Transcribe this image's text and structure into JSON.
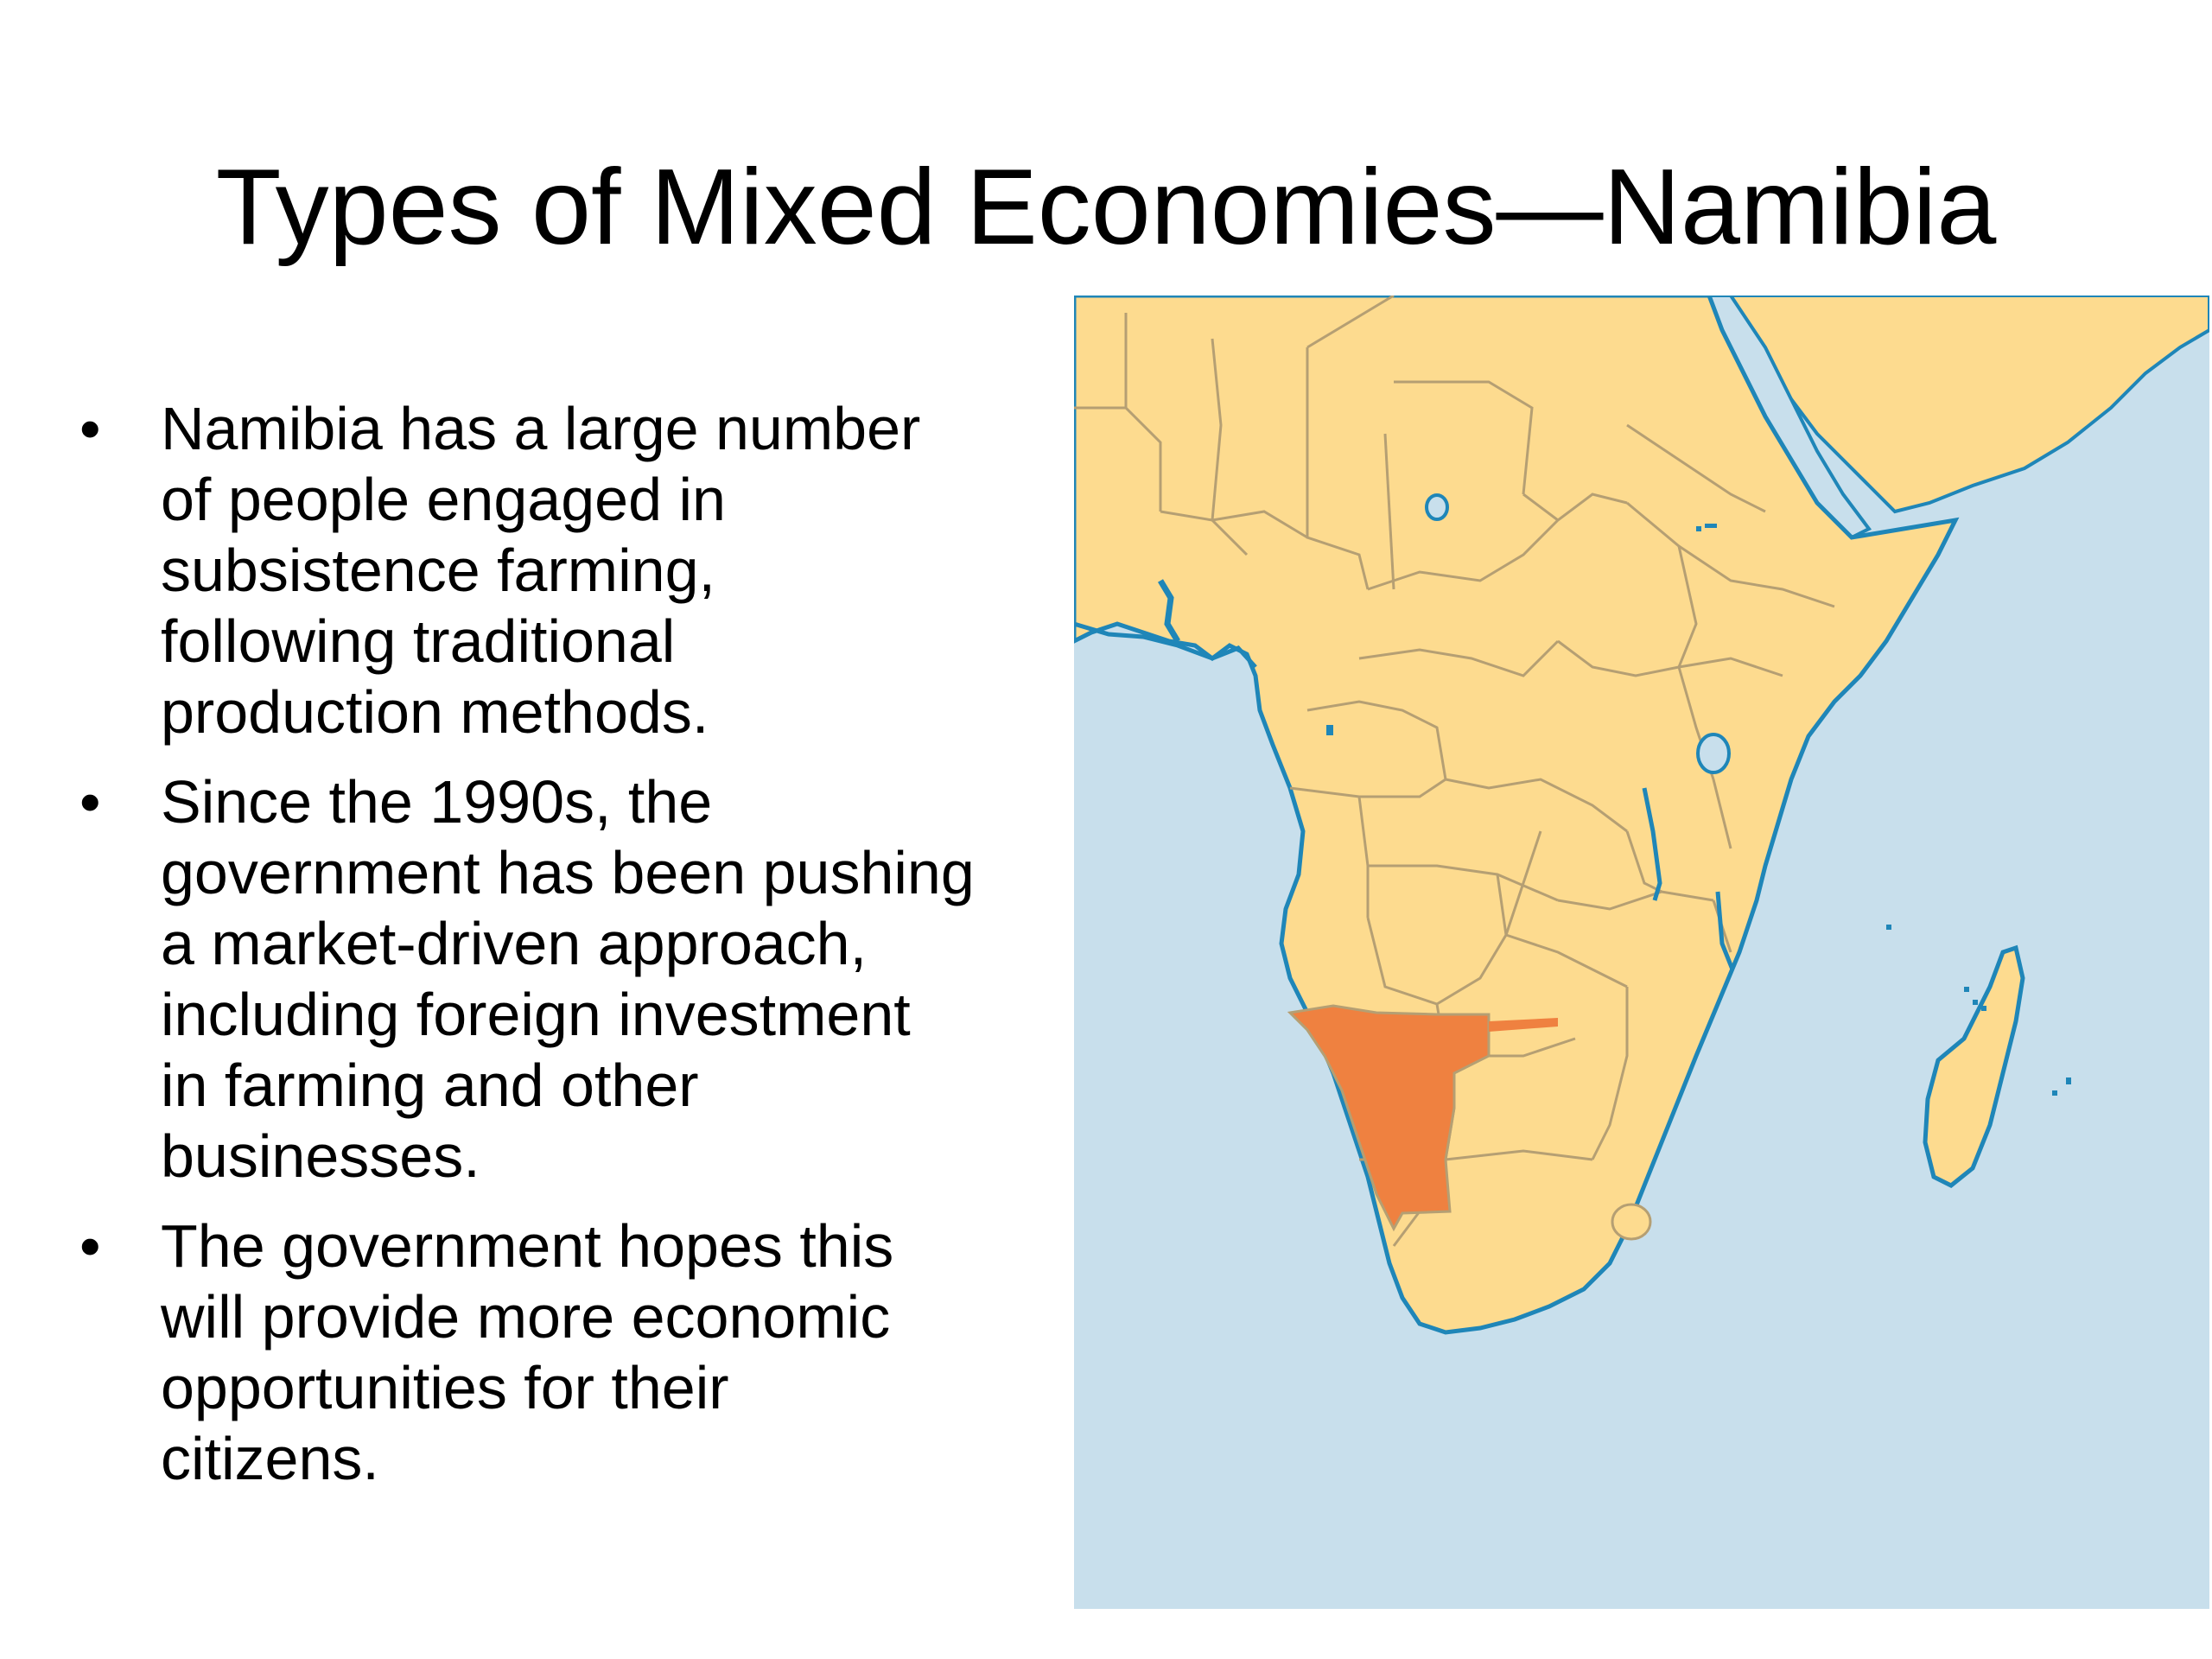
{
  "slide": {
    "title": "Types of Mixed Economies—Namibia",
    "bullets": [
      {
        "marker": "•",
        "lines": [
          "Namibia has a large number",
          "of people engaged in",
          "subsistence farming,",
          "following traditional",
          "production methods."
        ]
      },
      {
        "marker": "•",
        "lines": [
          "Since the 1990s, the",
          "government has been pushing",
          "a market-driven approach,",
          "including foreign investment",
          "in farming and other",
          "businesses."
        ]
      },
      {
        "marker": "•",
        "lines": [
          "The government hopes this",
          "will provide more economic",
          "opportunities for their",
          "citizens."
        ]
      }
    ]
  },
  "map": {
    "region": "Africa",
    "highlighted_country": "Namibia",
    "colors": {
      "ocean": "#c8dfec",
      "land": "#fddb8f",
      "border": "#b59f73",
      "coastline": "#1f86b8",
      "highlight": "#ef8140"
    }
  }
}
